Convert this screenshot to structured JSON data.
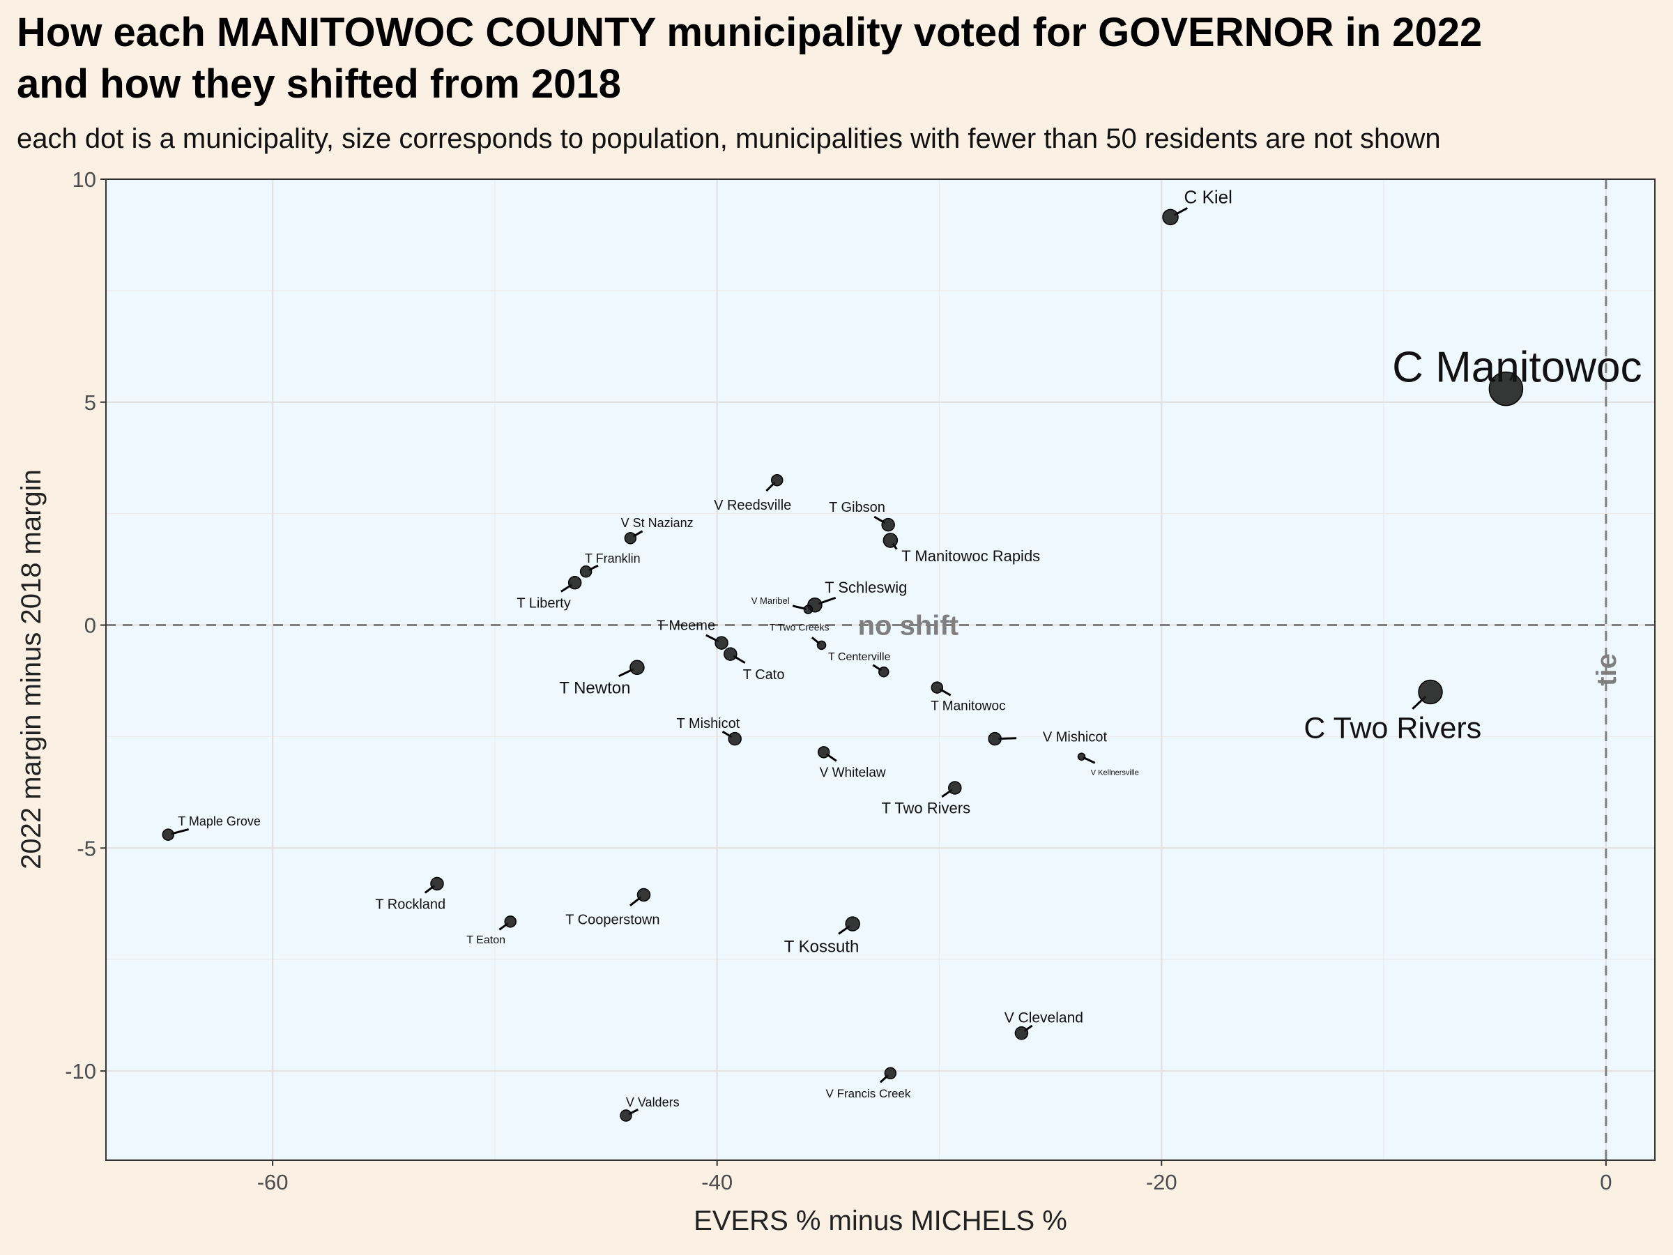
{
  "chart_data": {
    "type": "scatter",
    "title_line1": "How each MANITOWOC COUNTY municipality voted for GOVERNOR in 2022",
    "title_line2": "and how they shifted from 2018",
    "subtitle": "each dot is a municipality, size corresponds to population, municipalities with fewer than 50 residents are not shown",
    "xlabel": "EVERS % minus MICHELS %",
    "ylabel": "2022 margin minus 2018 margin",
    "xlim": [
      -67.5,
      2.2
    ],
    "ylim": [
      -12,
      10
    ],
    "xticks": [
      -60,
      -40,
      -20,
      0
    ],
    "yticks": [
      -10,
      -5,
      0,
      5,
      10
    ],
    "ref_lines": {
      "hline_label": "no shift",
      "vline_label": "tie"
    },
    "grid": true,
    "point_color": "#1a1a1a",
    "panel_color": "#f0f8ff",
    "points": [
      {
        "label": "C Kiel",
        "x": -19.6,
        "y": 9.15,
        "size": 11,
        "lx": -17.9,
        "ly": 9.6,
        "fs": 26,
        "anchor": "middle"
      },
      {
        "label": "C Manitowoc",
        "x": -4.5,
        "y": 5.3,
        "size": 24,
        "lx": -4.0,
        "ly": 5.8,
        "fs": 62,
        "anchor": "middle"
      },
      {
        "label": "C Two Rivers",
        "x": -7.9,
        "y": -1.5,
        "size": 17,
        "lx": -9.6,
        "ly": -2.3,
        "fs": 43,
        "anchor": "middle"
      },
      {
        "label": "V Reedsville",
        "x": -37.3,
        "y": 3.25,
        "size": 8,
        "lx": -38.4,
        "ly": 2.7,
        "fs": 20,
        "anchor": "middle"
      },
      {
        "label": "T Gibson",
        "x": -32.3,
        "y": 2.25,
        "size": 9,
        "lx": -33.7,
        "ly": 2.65,
        "fs": 20,
        "anchor": "middle"
      },
      {
        "label": "T Manitowoc Rapids",
        "x": -32.2,
        "y": 1.9,
        "size": 10,
        "lx": -31.7,
        "ly": 1.55,
        "fs": 22,
        "anchor": "start"
      },
      {
        "label": "V St Nazianz",
        "x": -43.9,
        "y": 1.95,
        "size": 8,
        "lx": -42.7,
        "ly": 2.3,
        "fs": 18,
        "anchor": "middle"
      },
      {
        "label": "T Franklin",
        "x": -45.9,
        "y": 1.2,
        "size": 8,
        "lx": -44.7,
        "ly": 1.5,
        "fs": 18,
        "anchor": "middle"
      },
      {
        "label": "T Liberty",
        "x": -46.4,
        "y": 0.95,
        "size": 9,
        "lx": -47.8,
        "ly": 0.5,
        "fs": 20,
        "anchor": "middle"
      },
      {
        "label": "T Schleswig",
        "x": -35.6,
        "y": 0.45,
        "size": 10,
        "lx": -33.3,
        "ly": 0.85,
        "fs": 22,
        "anchor": "middle"
      },
      {
        "label": "V Maribel",
        "x": -35.9,
        "y": 0.35,
        "size": 6,
        "lx": -37.6,
        "ly": 0.55,
        "fs": 13,
        "anchor": "middle"
      },
      {
        "label": "T Two Creeks",
        "x": -35.3,
        "y": -0.45,
        "size": 6,
        "lx": -36.3,
        "ly": -0.05,
        "fs": 14,
        "anchor": "middle"
      },
      {
        "label": "T Meeme",
        "x": -39.8,
        "y": -0.4,
        "size": 9,
        "lx": -41.4,
        "ly": 0.0,
        "fs": 20,
        "anchor": "middle"
      },
      {
        "label": "T Cato",
        "x": -39.4,
        "y": -0.65,
        "size": 9,
        "lx": -37.9,
        "ly": -1.1,
        "fs": 20,
        "anchor": "middle"
      },
      {
        "label": "T Centerville",
        "x": -32.5,
        "y": -1.05,
        "size": 7,
        "lx": -33.6,
        "ly": -0.7,
        "fs": 16,
        "anchor": "middle"
      },
      {
        "label": "T Newton",
        "x": -43.6,
        "y": -0.95,
        "size": 10,
        "lx": -45.5,
        "ly": -1.4,
        "fs": 24,
        "anchor": "middle"
      },
      {
        "label": "T Manitowoc",
        "x": -30.1,
        "y": -1.4,
        "size": 8,
        "lx": -28.7,
        "ly": -1.8,
        "fs": 19,
        "anchor": "middle"
      },
      {
        "label": "T Mishicot",
        "x": -39.2,
        "y": -2.55,
        "size": 9,
        "lx": -40.4,
        "ly": -2.2,
        "fs": 20,
        "anchor": "middle"
      },
      {
        "label": "V Mishicot",
        "x": -27.5,
        "y": -2.55,
        "size": 9,
        "lx": -23.9,
        "ly": -2.5,
        "fs": 20,
        "anchor": "middle"
      },
      {
        "label": "V Kellnersville",
        "x": -23.6,
        "y": -2.95,
        "size": 5,
        "lx": -22.1,
        "ly": -3.3,
        "fs": 11,
        "anchor": "middle"
      },
      {
        "label": "V Whitelaw",
        "x": -35.2,
        "y": -2.85,
        "size": 8,
        "lx": -33.9,
        "ly": -3.3,
        "fs": 19,
        "anchor": "middle"
      },
      {
        "label": "T Two Rivers",
        "x": -29.3,
        "y": -3.65,
        "size": 9,
        "lx": -30.6,
        "ly": -4.1,
        "fs": 22,
        "anchor": "middle"
      },
      {
        "label": "T Maple Grove",
        "x": -64.7,
        "y": -4.7,
        "size": 8,
        "lx": -62.4,
        "ly": -4.4,
        "fs": 18,
        "anchor": "middle"
      },
      {
        "label": "T Rockland",
        "x": -52.6,
        "y": -5.8,
        "size": 9,
        "lx": -53.8,
        "ly": -6.25,
        "fs": 20,
        "anchor": "middle"
      },
      {
        "label": "T Eaton",
        "x": -49.3,
        "y": -6.65,
        "size": 8,
        "lx": -50.4,
        "ly": -7.05,
        "fs": 16,
        "anchor": "middle"
      },
      {
        "label": "T Cooperstown",
        "x": -43.3,
        "y": -6.05,
        "size": 9,
        "lx": -44.7,
        "ly": -6.6,
        "fs": 20,
        "anchor": "middle"
      },
      {
        "label": "T Kossuth",
        "x": -33.9,
        "y": -6.7,
        "size": 10,
        "lx": -35.3,
        "ly": -7.2,
        "fs": 24,
        "anchor": "middle"
      },
      {
        "label": "V Cleveland",
        "x": -26.3,
        "y": -9.15,
        "size": 9,
        "lx": -25.3,
        "ly": -8.8,
        "fs": 21,
        "anchor": "middle"
      },
      {
        "label": "V Francis Creek",
        "x": -32.2,
        "y": -10.05,
        "size": 8,
        "lx": -33.2,
        "ly": -10.5,
        "fs": 17,
        "anchor": "middle"
      },
      {
        "label": "V Valders",
        "x": -44.1,
        "y": -11.0,
        "size": 8,
        "lx": -42.9,
        "ly": -10.7,
        "fs": 18,
        "anchor": "middle"
      }
    ]
  }
}
